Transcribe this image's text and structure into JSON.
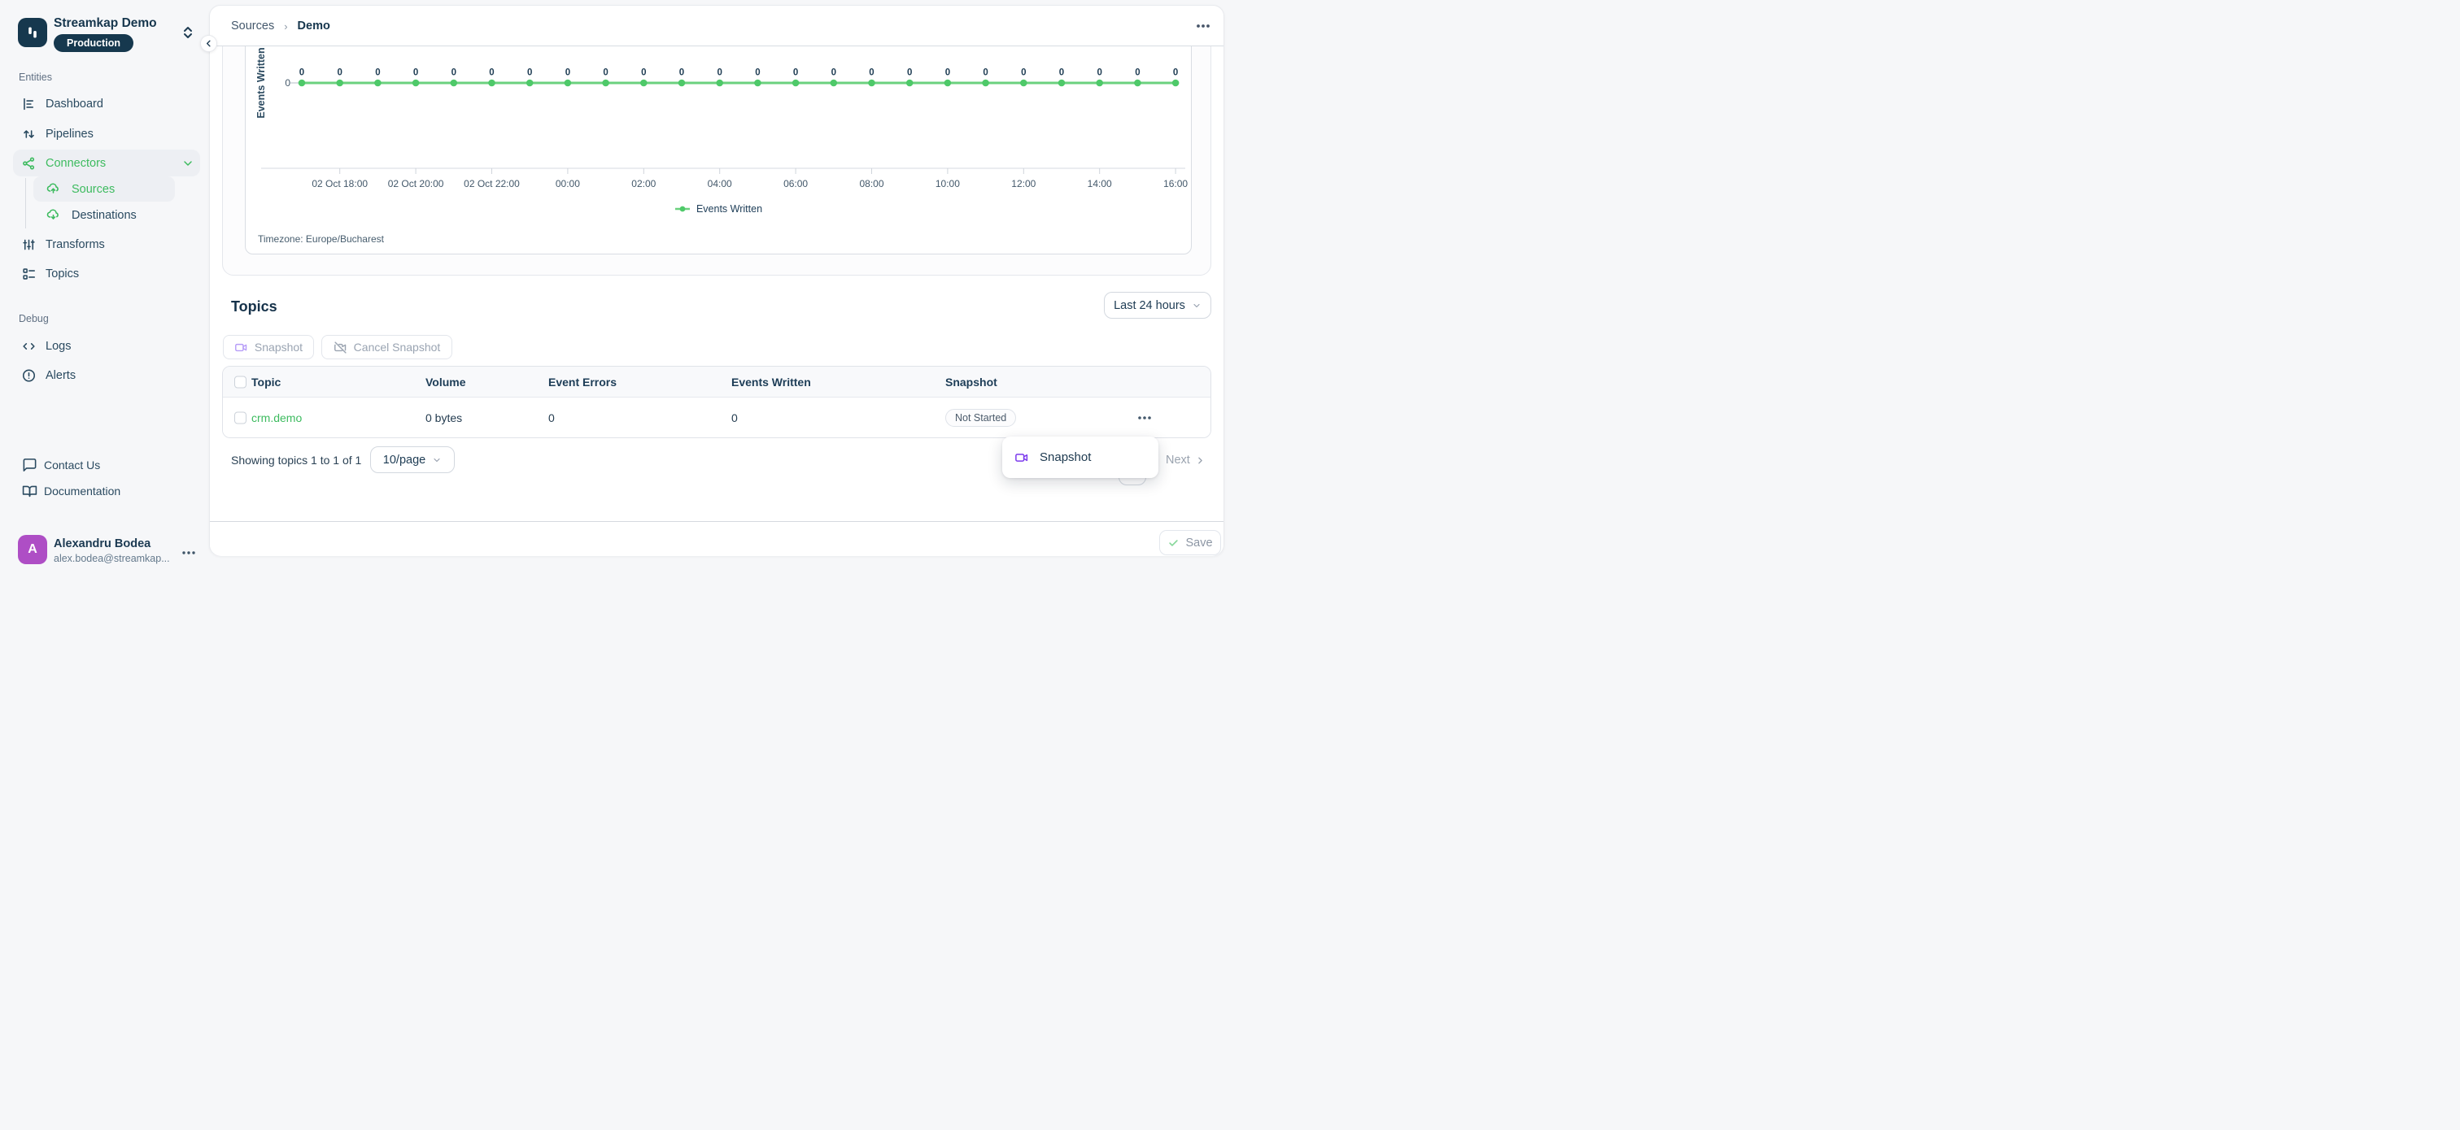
{
  "workspace": {
    "name": "Streamkap Demo",
    "environment": "Production"
  },
  "sidebar": {
    "section_entities": "Entities",
    "section_debug": "Debug",
    "items": [
      {
        "label": "Dashboard",
        "icon": "dashboard-icon"
      },
      {
        "label": "Pipelines",
        "icon": "pipelines-icon"
      },
      {
        "label": "Connectors",
        "icon": "connectors-icon",
        "active": true,
        "expanded": true
      },
      {
        "label": "Sources",
        "icon": "cloud-upload-icon",
        "active": true
      },
      {
        "label": "Destinations",
        "icon": "cloud-download-icon"
      },
      {
        "label": "Transforms",
        "icon": "transforms-icon"
      },
      {
        "label": "Topics",
        "icon": "topics-icon"
      },
      {
        "label": "Logs",
        "icon": "code-icon"
      },
      {
        "label": "Alerts",
        "icon": "alert-circle-icon"
      },
      {
        "label": "Contact Us",
        "icon": "chat-icon"
      },
      {
        "label": "Documentation",
        "icon": "book-icon"
      }
    ],
    "user": {
      "initial": "A",
      "name": "Alexandru Bodea",
      "email": "alex.bodea@streamkap..."
    }
  },
  "header": {
    "breadcrumb_parent": "Sources",
    "breadcrumb_current": "Demo"
  },
  "chart_data": {
    "type": "line",
    "ylabel": "Events Written",
    "x": [
      "02 Oct 17:00",
      "02 Oct 18:00",
      "02 Oct 19:00",
      "02 Oct 20:00",
      "02 Oct 21:00",
      "02 Oct 22:00",
      "02 Oct 23:00",
      "03 Oct 00:00",
      "03 Oct 01:00",
      "03 Oct 02:00",
      "03 Oct 03:00",
      "03 Oct 04:00",
      "03 Oct 05:00",
      "03 Oct 06:00",
      "03 Oct 07:00",
      "03 Oct 08:00",
      "03 Oct 09:00",
      "03 Oct 10:00",
      "03 Oct 11:00",
      "03 Oct 12:00",
      "03 Oct 13:00",
      "03 Oct 14:00",
      "03 Oct 15:00",
      "03 Oct 16:00"
    ],
    "series": [
      {
        "name": "Events Written",
        "values": [
          0,
          0,
          0,
          0,
          0,
          0,
          0,
          0,
          0,
          0,
          0,
          0,
          0,
          0,
          0,
          0,
          0,
          0,
          0,
          0,
          0,
          0,
          0,
          0
        ]
      }
    ],
    "tick_labels": [
      "02 Oct 18:00",
      "02 Oct 20:00",
      "02 Oct 22:00",
      "00:00",
      "02:00",
      "04:00",
      "06:00",
      "08:00",
      "10:00",
      "12:00",
      "14:00",
      "16:00"
    ],
    "yticks": [
      "0"
    ],
    "ylim": [
      0,
      1
    ],
    "grid": false,
    "legend_position": "bottom-center",
    "timezone_note": "Timezone: Europe/Bucharest",
    "line_color": "#6bd17e",
    "point_color": "#4ec969"
  },
  "topics": {
    "title": "Topics",
    "time_range": "Last 24 hours",
    "snapshot_button": "Snapshot",
    "cancel_snapshot_button": "Cancel Snapshot",
    "table": {
      "columns": [
        "Topic",
        "Volume",
        "Event Errors",
        "Events Written",
        "Snapshot"
      ],
      "rows": [
        {
          "topic": "crm.demo",
          "volume": "0 bytes",
          "event_errors": "0",
          "events_written": "0",
          "snapshot_status": "Not Started"
        }
      ]
    },
    "pagination": {
      "summary": "Showing topics 1 to 1 of 1",
      "page_size": "10/page",
      "page": "1",
      "next_label": "Next"
    }
  },
  "context_menu": {
    "items": [
      {
        "label": "Snapshot",
        "icon": "video-camera-icon"
      }
    ]
  },
  "footer": {
    "save_label": "Save"
  },
  "colors": {
    "accent_green": "#3dbb5f",
    "navy": "#16364d",
    "purple": "#7c3aed",
    "avatar_purple": "#ae4ec5",
    "badge_navy": "#16384e"
  }
}
